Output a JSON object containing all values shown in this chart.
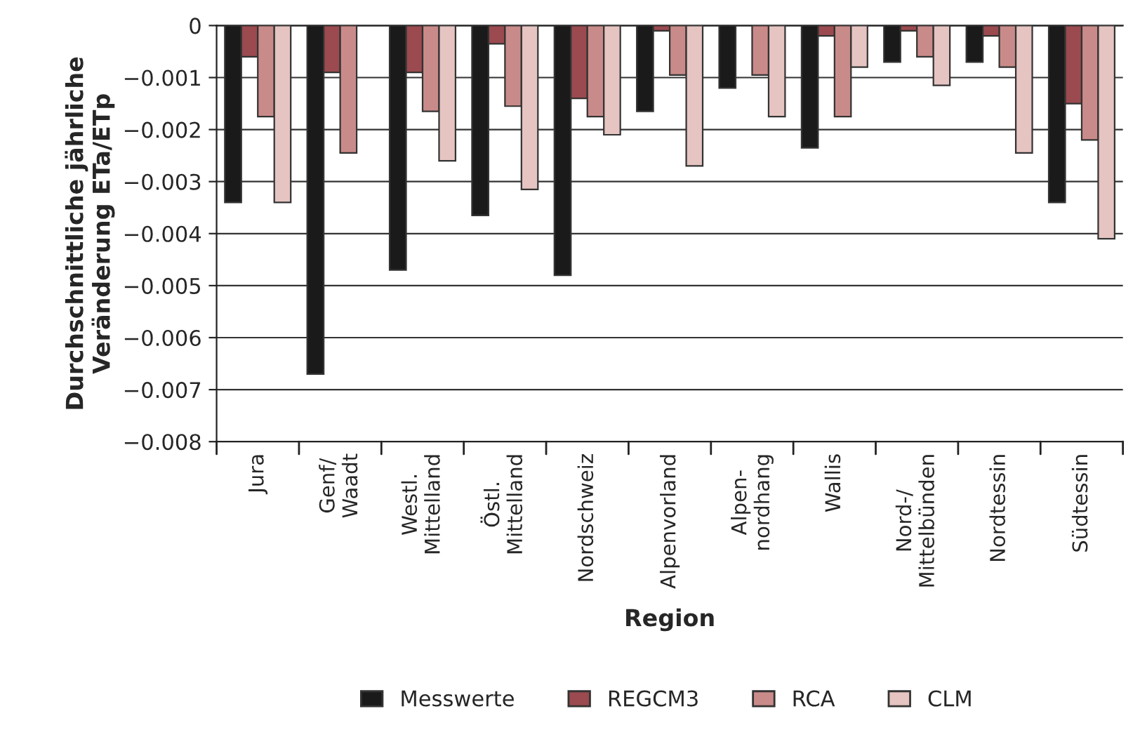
{
  "chart_data": {
    "type": "bar",
    "xlabel": "Region",
    "ylabel": "Durchschnittliche jährliche\nVeränderung ETa/ETp",
    "categories": [
      "Jura",
      "Genf/\nWaadt",
      "Westl.\nMittelland",
      "Östl.\nMittelland",
      "Nordschweiz",
      "Alpenvorland",
      "Alpen-\nnordhang",
      "Wallis",
      "Nord-/\nMittelbünden",
      "Nordtessin",
      "Südtessin"
    ],
    "series": [
      {
        "name": "Messwerte",
        "color": "#1a1a1a",
        "values": [
          -0.0034,
          -0.0067,
          -0.0047,
          -0.00365,
          -0.0048,
          -0.00165,
          -0.0012,
          -0.00235,
          -0.0007,
          -0.0007,
          -0.0034
        ]
      },
      {
        "name": "REGCM3",
        "color": "#9b4a4f",
        "values": [
          -0.0006,
          -0.0009,
          -0.0009,
          -0.00035,
          -0.0014,
          -0.0001,
          null,
          -0.0002,
          -0.0001,
          -0.0002,
          -0.0015
        ]
      },
      {
        "name": "RCA",
        "color": "#c98b89",
        "values": [
          -0.00175,
          -0.00245,
          -0.00165,
          -0.00155,
          -0.00175,
          -0.00095,
          -0.00095,
          -0.00175,
          -0.0006,
          -0.0008,
          -0.0022
        ]
      },
      {
        "name": "CLM",
        "color": "#e5c4c1",
        "values": [
          -0.0034,
          null,
          -0.0026,
          -0.00315,
          -0.0021,
          -0.0027,
          -0.00175,
          -0.0008,
          -0.00115,
          -0.00245,
          -0.0041
        ]
      }
    ],
    "ylim": [
      -0.008,
      0
    ],
    "yticks": [
      0,
      {
        "value": -0.001,
        "label": "−0.001"
      },
      {
        "value": -0.002,
        "label": "−0.002"
      },
      {
        "value": -0.003,
        "label": "−0.003"
      },
      {
        "value": -0.004,
        "label": "−0.004"
      },
      {
        "value": -0.005,
        "label": "−0.005"
      },
      {
        "value": -0.006,
        "label": "−0.006"
      },
      {
        "value": -0.007,
        "label": "−0.007"
      },
      {
        "value": -0.008,
        "label": "−0.008"
      }
    ],
    "grid": "y",
    "legend": "bottom"
  }
}
